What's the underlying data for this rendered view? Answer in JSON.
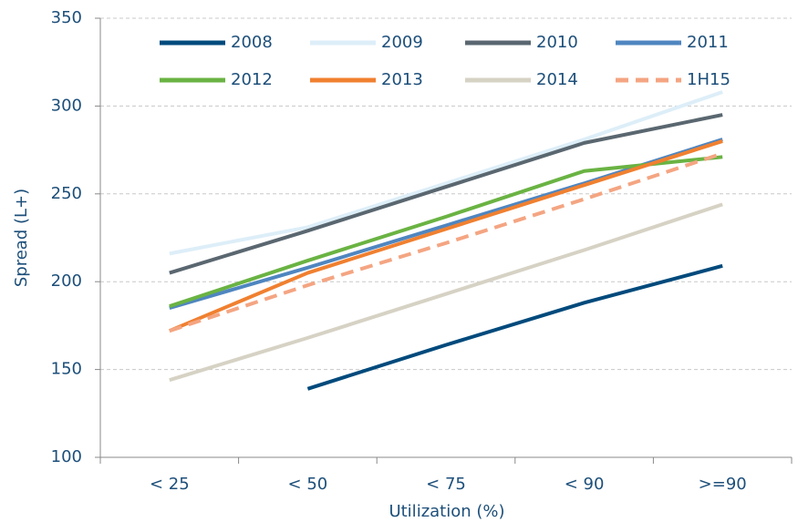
{
  "chart_data": {
    "type": "line",
    "x_label": "Utilization (%)",
    "y_label": "Spread (L+)",
    "categories": [
      "< 25",
      "< 50",
      "< 75",
      "< 90",
      ">=90"
    ],
    "series": [
      {
        "name": "2008",
        "color": "#004a7c",
        "values": [
          null,
          139,
          164,
          188,
          209
        ]
      },
      {
        "name": "2009",
        "color": "#ddeef8",
        "values": [
          216,
          231,
          256,
          281,
          308
        ]
      },
      {
        "name": "2010",
        "color": "#5a6770",
        "values": [
          205,
          229,
          254,
          279,
          295
        ]
      },
      {
        "name": "2011",
        "color": "#4f86c0",
        "values": [
          185,
          208,
          232,
          256,
          281
        ]
      },
      {
        "name": "2012",
        "color": "#6ab343",
        "values": [
          186,
          212,
          237,
          263,
          271
        ]
      },
      {
        "name": "2013",
        "color": "#f08030",
        "values": [
          172,
          205,
          230,
          255,
          280
        ]
      },
      {
        "name": "2014",
        "color": "#d6d2c4",
        "values": [
          144,
          168,
          193,
          218,
          244
        ]
      },
      {
        "name": "1H15",
        "color": "#f4a582",
        "dashed": true,
        "values": [
          172,
          198,
          222,
          247,
          273
        ]
      }
    ],
    "ylim": [
      100,
      350
    ],
    "yticks": [
      100,
      150,
      200,
      250,
      300,
      350
    ],
    "grid": true
  }
}
